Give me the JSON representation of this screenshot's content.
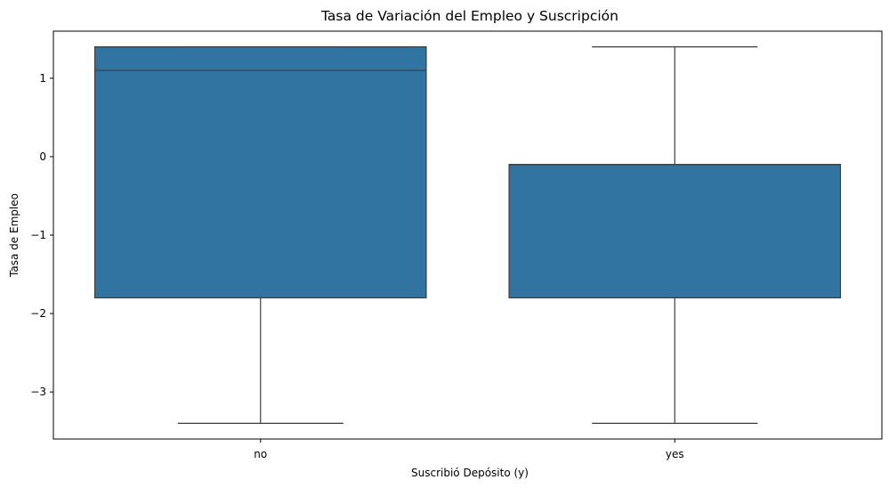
{
  "chart_data": {
    "type": "box",
    "title": "Tasa de Variación del Empleo y Suscripción",
    "xlabel": "Suscribió Depósito (y)",
    "ylabel": "Tasa de Empleo",
    "categories": [
      "no",
      "yes"
    ],
    "ylim": [
      -3.6,
      1.6
    ],
    "yticks": [
      1,
      0,
      -1,
      -2,
      -3
    ],
    "ytick_labels": [
      "1",
      "0",
      "−1",
      "−2",
      "−3"
    ],
    "box_color": "#3274a1",
    "line_color": "#3d3d3d",
    "grid": false,
    "series": [
      {
        "category": "no",
        "whisker_low": -3.4,
        "q1": -1.8,
        "median": 1.1,
        "q3": 1.4,
        "whisker_high": 1.4
      },
      {
        "category": "yes",
        "whisker_low": -3.4,
        "q1": -1.8,
        "median": -0.1,
        "q3": -0.1,
        "whisker_high": 1.4
      }
    ]
  }
}
